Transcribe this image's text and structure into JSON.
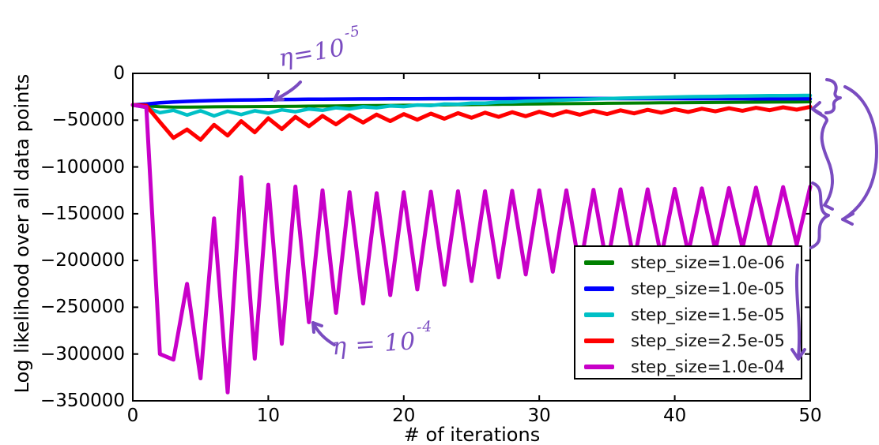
{
  "chart_data": {
    "type": "line",
    "title": "",
    "xlabel": "# of iterations",
    "ylabel": "Log likelihood over all data points",
    "xlim": [
      0,
      50
    ],
    "ylim": [
      -350000,
      0
    ],
    "grid": false,
    "legend_position": "lower right inside",
    "xticks": {
      "values": [
        0,
        10,
        20,
        30,
        40,
        50
      ],
      "labels": [
        "0",
        "10",
        "20",
        "30",
        "40",
        "50"
      ]
    },
    "yticks": {
      "values": [
        0,
        -50000,
        -100000,
        -150000,
        -200000,
        -250000,
        -300000,
        -350000
      ],
      "labels": [
        "0",
        "−50000",
        "−100000",
        "−150000",
        "−200000",
        "−250000",
        "−300000",
        "−350000"
      ]
    },
    "x_step": 1,
    "series": [
      {
        "name": "step_size=1.0e-06",
        "color": "#008000",
        "lw": 4,
        "values": [
          -33700,
          -34800,
          -35700,
          -36000,
          -36000,
          -35900,
          -35800,
          -35700,
          -35600,
          -35500,
          -35400,
          -35300,
          -35200,
          -35000,
          -34900,
          -34800,
          -34600,
          -34500,
          -34400,
          -34200,
          -34100,
          -34000,
          -33800,
          -33700,
          -33500,
          -33400,
          -33200,
          -33100,
          -33000,
          -32800,
          -32700,
          -32500,
          -32400,
          -32300,
          -32100,
          -32000,
          -31900,
          -31700,
          -31600,
          -31500,
          -31400,
          -31300,
          -31200,
          -31100,
          -31000,
          -30900,
          -30800,
          -30700,
          -30600,
          -30500,
          -30400
        ]
      },
      {
        "name": "step_size=1.0e-05",
        "color": "#0000ff",
        "lw": 4.5,
        "values": [
          -33700,
          -32800,
          -31500,
          -30500,
          -29900,
          -29400,
          -29000,
          -28700,
          -28500,
          -28300,
          -28100,
          -27900,
          -27800,
          -27700,
          -27600,
          -27500,
          -27400,
          -27350,
          -27300,
          -27250,
          -27200,
          -27150,
          -27100,
          -27050,
          -27000,
          -27000,
          -26950,
          -26950,
          -26900,
          -26900,
          -26900,
          -26900,
          -26900,
          -26900,
          -26900,
          -26900,
          -26950,
          -26950,
          -27000,
          -27000,
          -27000,
          -27050,
          -27050,
          -27100,
          -27100,
          -27100,
          -27150,
          -27150,
          -27200,
          -27200,
          -27200
        ]
      },
      {
        "name": "step_size=1.5e-05",
        "color": "#00c0c6",
        "lw": 4.5,
        "values": [
          -33700,
          -36500,
          -42000,
          -39500,
          -44500,
          -40000,
          -45500,
          -40500,
          -44000,
          -40000,
          -42500,
          -39000,
          -41000,
          -38000,
          -39500,
          -36800,
          -38000,
          -35800,
          -36800,
          -34800,
          -35500,
          -33800,
          -34300,
          -32800,
          -33000,
          -31800,
          -31800,
          -30800,
          -30500,
          -29800,
          -29300,
          -28800,
          -28300,
          -27900,
          -27400,
          -27000,
          -26600,
          -26200,
          -25900,
          -25600,
          -25300,
          -25000,
          -24800,
          -24600,
          -24400,
          -24200,
          -24000,
          -23900,
          -23800,
          -23700,
          -23600
        ]
      },
      {
        "name": "step_size=2.5e-05",
        "color": "#ff0000",
        "lw": 5,
        "values": [
          -33700,
          -34500,
          -52000,
          -69000,
          -60000,
          -71000,
          -55000,
          -66500,
          -51000,
          -63000,
          -48000,
          -59500,
          -46500,
          -56500,
          -45500,
          -54500,
          -44500,
          -52500,
          -44000,
          -51000,
          -43500,
          -49500,
          -43000,
          -48500,
          -42500,
          -47500,
          -42000,
          -46500,
          -41500,
          -45800,
          -41000,
          -45000,
          -40500,
          -44200,
          -40000,
          -43500,
          -39500,
          -42800,
          -39000,
          -42000,
          -38300,
          -41200,
          -37800,
          -40600,
          -37300,
          -40000,
          -36800,
          -39400,
          -36300,
          -38800,
          -35800
        ]
      },
      {
        "name": "step_size=1.0e-04",
        "color": "#c800c8",
        "lw": 5,
        "values": [
          -33700,
          -36000,
          -300000,
          -306000,
          -225000,
          -326000,
          -155000,
          -341000,
          -111000,
          -305000,
          -119000,
          -289000,
          -121000,
          -266000,
          -125000,
          -256000,
          -127000,
          -246000,
          -128000,
          -237000,
          -127000,
          -231000,
          -126500,
          -226000,
          -126000,
          -222000,
          -126000,
          -218000,
          -125500,
          -215000,
          -125000,
          -212000,
          -125000,
          -209000,
          -124500,
          -206000,
          -124000,
          -201000,
          -124000,
          -196000,
          -123500,
          -192000,
          -123000,
          -189000,
          -122500,
          -186500,
          -122000,
          -184500,
          -121500,
          -183000,
          -121000
        ]
      }
    ]
  },
  "annotations": {
    "ink_color": "#7a4cc0",
    "eta5": {
      "base": "η=10",
      "exp": "-5"
    },
    "eta4": {
      "base": "η = 10",
      "exp": "-4"
    }
  }
}
